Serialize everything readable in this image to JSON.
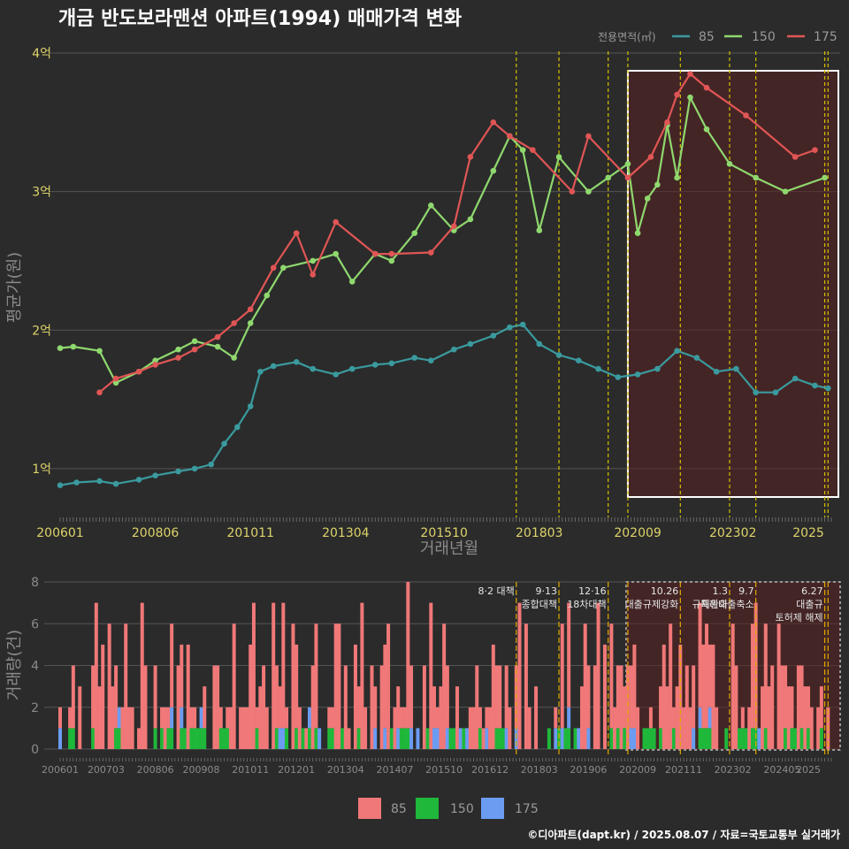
{
  "title": "개금 반도보라맨션 아파트(1994) 매매가격 변화",
  "footer": "©디아파트(dapt.kr) / 2025.08.07 / 자료=국토교통부 실거래가",
  "colors": {
    "s85": "#3a9a9e",
    "s150": "#8fd86e",
    "s175": "#e05555",
    "bar85": "#f07878",
    "bar150": "#1fb83a",
    "bar175": "#6b9cf2",
    "vline": "#d4c000"
  },
  "chart_data": [
    {
      "type": "line",
      "ylabel": "평균가(원)",
      "xlabel": "거래년월",
      "legend_title": "전용면적(㎡)",
      "legend_position": "top-right",
      "grid": true,
      "x_range": [
        "2006-01",
        "2025-08"
      ],
      "x_ticks": [
        "200601",
        "200806",
        "201011",
        "201304",
        "201510",
        "201803",
        "202009",
        "202302",
        "2025"
      ],
      "y_ticks": [
        "1억",
        "2억",
        "3억",
        "4억"
      ],
      "y_tick_values": [
        1,
        2,
        3,
        4
      ],
      "ylim": [
        0.68,
        4.0
      ],
      "highlight_range": [
        "2020-06",
        "2025-08"
      ],
      "policy_dates": [
        "2017-08",
        "2018-09",
        "2019-12",
        "2020-06",
        "2021-10",
        "2023-01",
        "2023-09",
        "2025-06",
        "2025-07"
      ],
      "series": [
        {
          "name": "85",
          "x": [
            "2006-01",
            "2006-06",
            "2007-01",
            "2007-06",
            "2008-01",
            "2008-06",
            "2009-01",
            "2009-06",
            "2009-11",
            "2010-03",
            "2010-07",
            "2010-11",
            "2011-02",
            "2011-06",
            "2012-01",
            "2012-06",
            "2013-01",
            "2013-06",
            "2014-01",
            "2014-06",
            "2015-01",
            "2015-06",
            "2016-01",
            "2016-06",
            "2017-01",
            "2017-06",
            "2017-10",
            "2018-03",
            "2018-09",
            "2019-03",
            "2019-09",
            "2020-03",
            "2020-09",
            "2021-03",
            "2021-09",
            "2022-03",
            "2022-09",
            "2023-03",
            "2023-09",
            "2024-03",
            "2024-09",
            "2025-03",
            "2025-07"
          ],
          "values": [
            0.88,
            0.9,
            0.91,
            0.89,
            0.92,
            0.95,
            0.98,
            1.0,
            1.03,
            1.18,
            1.3,
            1.45,
            1.7,
            1.74,
            1.77,
            1.72,
            1.68,
            1.72,
            1.75,
            1.76,
            1.8,
            1.78,
            1.86,
            1.9,
            1.96,
            2.02,
            2.04,
            1.9,
            1.82,
            1.78,
            1.72,
            1.66,
            1.68,
            1.72,
            1.85,
            1.8,
            1.7,
            1.72,
            1.55,
            1.55,
            1.65,
            1.6,
            1.58
          ]
        },
        {
          "name": "150",
          "x": [
            "2006-01",
            "2006-05",
            "2007-01",
            "2007-06",
            "2008-01",
            "2008-06",
            "2009-01",
            "2009-06",
            "2010-01",
            "2010-06",
            "2010-11",
            "2011-04",
            "2011-09",
            "2012-06",
            "2013-01",
            "2013-06",
            "2014-01",
            "2014-06",
            "2015-01",
            "2015-06",
            "2016-01",
            "2016-06",
            "2017-01",
            "2017-06",
            "2017-10",
            "2018-03",
            "2018-09",
            "2019-06",
            "2019-12",
            "2020-06",
            "2020-09",
            "2020-12",
            "2021-03",
            "2021-06",
            "2021-09",
            "2022-01",
            "2022-06",
            "2023-01",
            "2023-09",
            "2024-06",
            "2025-06"
          ],
          "values": [
            1.87,
            1.88,
            1.85,
            1.62,
            1.7,
            1.78,
            1.86,
            1.92,
            1.88,
            1.8,
            2.05,
            2.25,
            2.45,
            2.5,
            2.55,
            2.35,
            2.55,
            2.5,
            2.7,
            2.9,
            2.72,
            2.8,
            3.15,
            3.4,
            3.3,
            2.72,
            3.25,
            3.0,
            3.1,
            3.2,
            2.7,
            2.95,
            3.05,
            3.48,
            3.1,
            3.68,
            3.45,
            3.2,
            3.1,
            3.0,
            3.1
          ]
        },
        {
          "name": "175",
          "x": [
            "2007-01",
            "2007-06",
            "2008-01",
            "2008-06",
            "2009-01",
            "2009-06",
            "2010-01",
            "2010-06",
            "2010-11",
            "2011-06",
            "2012-01",
            "2012-06",
            "2013-01",
            "2014-01",
            "2014-06",
            "2015-06",
            "2016-01",
            "2016-06",
            "2017-01",
            "2017-06",
            "2018-01",
            "2019-01",
            "2019-06",
            "2020-06",
            "2021-01",
            "2021-06",
            "2021-09",
            "2022-01",
            "2022-06",
            "2023-06",
            "2024-09",
            "2025-03"
          ],
          "values": [
            1.55,
            1.65,
            1.7,
            1.75,
            1.8,
            1.86,
            1.95,
            2.05,
            2.15,
            2.45,
            2.7,
            2.4,
            2.78,
            2.55,
            2.55,
            2.56,
            2.75,
            3.25,
            3.5,
            3.4,
            3.3,
            3.0,
            3.4,
            3.1,
            3.25,
            3.5,
            3.7,
            3.85,
            3.75,
            3.55,
            3.25,
            3.3
          ]
        }
      ]
    },
    {
      "type": "bar",
      "ylabel": "거래량(건)",
      "stacked": true,
      "x_ticks": [
        "200601",
        "200703",
        "200806",
        "200908",
        "201011",
        "201201",
        "201304",
        "201407",
        "201510",
        "201612",
        "201803",
        "201906",
        "202009",
        "202111",
        "202302",
        "202405",
        "2025"
      ],
      "y_ticks": [
        "0",
        "2",
        "4",
        "6",
        "8"
      ],
      "ylim": [
        0,
        8
      ],
      "legend_position": "bottom",
      "legend": [
        "85",
        "150",
        "175"
      ],
      "peaks": {
        "85_max": 8,
        "month_of_max": "2014-11"
      },
      "annotations": [
        {
          "date": "2017-08",
          "lines": [
            "8·2 대책"
          ]
        },
        {
          "date": "2018-09",
          "lines": [
            "9·13",
            "종합대책"
          ]
        },
        {
          "date": "2019-12",
          "lines": [
            "12·16",
            "18차대책"
          ]
        },
        {
          "date": "2021-10",
          "lines": [
            "10.26",
            "대출규제강화"
          ]
        },
        {
          "date": "2023-01",
          "lines": [
            "1.3",
            "규제완화"
          ]
        },
        {
          "date": "2023-09",
          "lines": [
            "9.7",
            "특례대출축소"
          ]
        },
        {
          "date": "2025-06",
          "lines": [
            "6.27",
            "대출규",
            "토허제 해제"
          ]
        }
      ]
    }
  ]
}
